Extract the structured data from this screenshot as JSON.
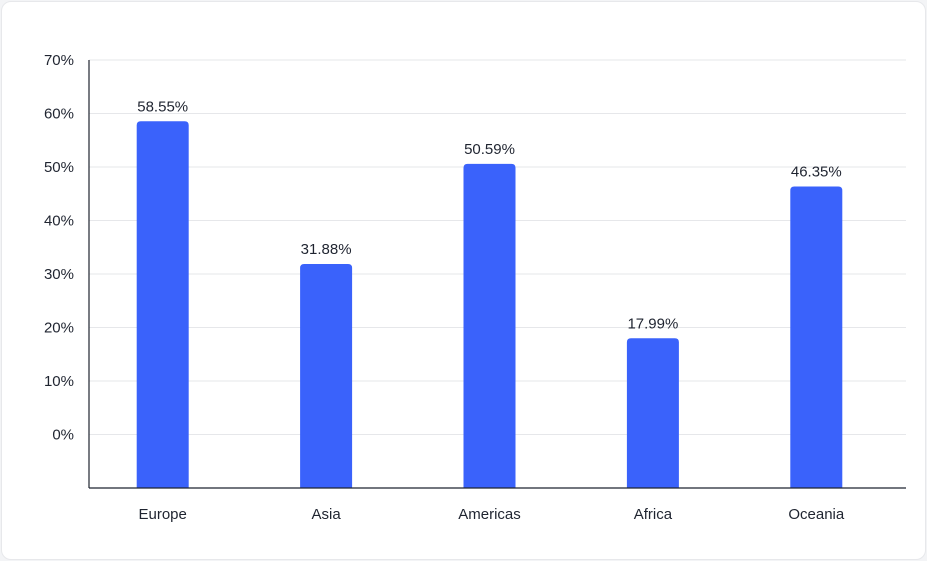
{
  "chart_data": {
    "type": "bar",
    "categories": [
      "Europe",
      "Asia",
      "Americas",
      "Africa",
      "Oceania"
    ],
    "values": [
      58.55,
      31.88,
      50.59,
      17.99,
      46.35
    ],
    "data_labels": [
      "58.55%",
      "31.88%",
      "50.59%",
      "17.99%",
      "46.35%"
    ],
    "y_ticks": [
      0,
      10,
      20,
      30,
      40,
      50,
      60,
      70
    ],
    "y_tick_labels": [
      "0%",
      "10%",
      "20%",
      "30%",
      "40%",
      "50%",
      "60%",
      "70%"
    ],
    "ylim": [
      -10,
      70
    ],
    "grid": true,
    "bar_color": "#3a62fb"
  }
}
